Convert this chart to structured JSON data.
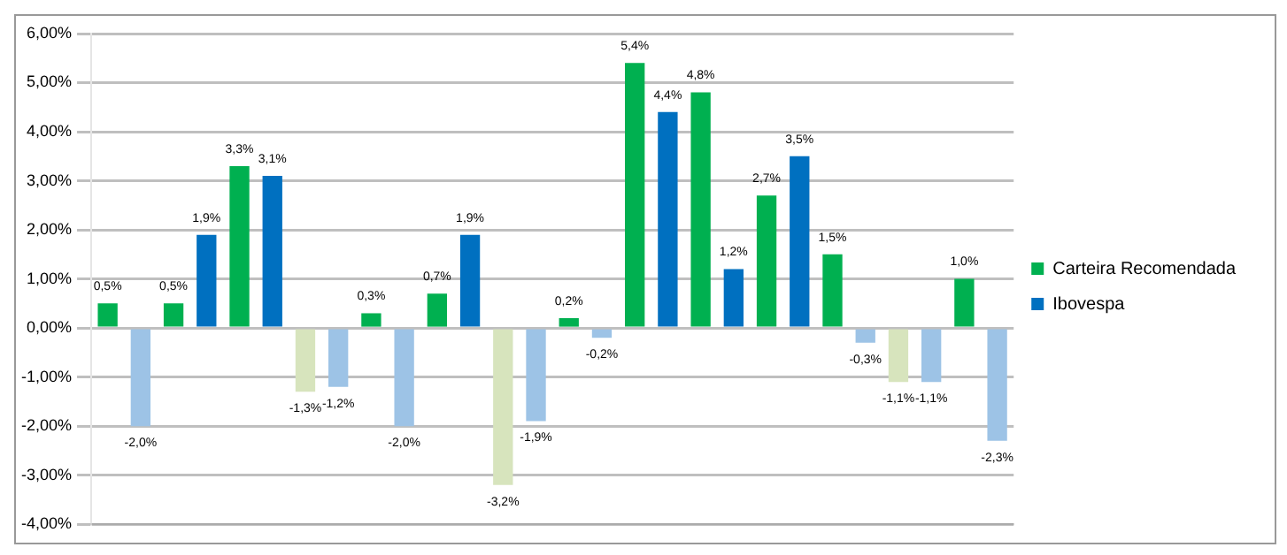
{
  "chart_data": {
    "type": "bar",
    "categories": [
      null,
      null,
      null,
      null,
      null,
      null,
      null,
      null,
      null,
      null,
      null,
      null,
      null,
      null
    ],
    "series": [
      {
        "name": "Carteira Recomendada",
        "color": "#00b050",
        "colors": [
          "#00b050",
          "#00b050",
          "#00b050",
          "#d7e4bd",
          "#00b050",
          "#00b050",
          "#d7e4bd",
          "#00b050",
          "#00b050",
          "#00b050",
          "#00b050",
          "#00b050",
          "#d7e4bd",
          "#00b050"
        ],
        "values": [
          0.5,
          0.5,
          3.3,
          -1.3,
          0.3,
          0.7,
          -3.2,
          0.2,
          5.4,
          4.8,
          2.7,
          1.5,
          -1.1,
          1.0
        ],
        "value_labels": [
          "0,5%",
          "0,5%",
          "3,3%",
          "-1,3%",
          "0,3%",
          "0,7%",
          "-3,2%",
          "0,2%",
          "5,4%",
          "4,8%",
          "2,7%",
          "1,5%",
          "-1,1%",
          "1,0%"
        ]
      },
      {
        "name": "Ibovespa",
        "color": "#0070c0",
        "colors": [
          "#9dc3e6",
          "#0070c0",
          "#0070c0",
          "#9dc3e6",
          "#9dc3e6",
          "#0070c0",
          "#9dc3e6",
          "#9dc3e6",
          "#0070c0",
          "#0070c0",
          "#0070c0",
          "#9dc3e6",
          "#9dc3e6",
          "#9dc3e6"
        ],
        "values": [
          -2.0,
          1.9,
          3.1,
          -1.2,
          -2.0,
          1.9,
          -1.9,
          -0.2,
          4.4,
          1.2,
          3.5,
          -0.3,
          -1.1,
          -2.3
        ],
        "value_labels": [
          "-2,0%",
          "1,9%",
          "3,1%",
          "-1,2%",
          "-2,0%",
          "1,9%",
          "-1,9%",
          "-0,2%",
          "4,4%",
          "1,2%",
          "3,5%",
          "-0,3%",
          "-1,1%",
          "-2,3%"
        ]
      }
    ],
    "ylim": [
      -4,
      6
    ],
    "yticks": [
      {
        "value": -4,
        "label": "-4,00%"
      },
      {
        "value": -3,
        "label": "-3,00%"
      },
      {
        "value": -2,
        "label": "-2,00%"
      },
      {
        "value": -1,
        "label": "-1,00%"
      },
      {
        "value": 0,
        "label": "0,00%"
      },
      {
        "value": 1,
        "label": "1,00%"
      },
      {
        "value": 2,
        "label": "2,00%"
      },
      {
        "value": 3,
        "label": "3,00%"
      },
      {
        "value": 4,
        "label": "4,00%"
      },
      {
        "value": 5,
        "label": "5,00%"
      },
      {
        "value": 6,
        "label": "6,00%"
      }
    ],
    "grid": "y",
    "legend": "right"
  }
}
